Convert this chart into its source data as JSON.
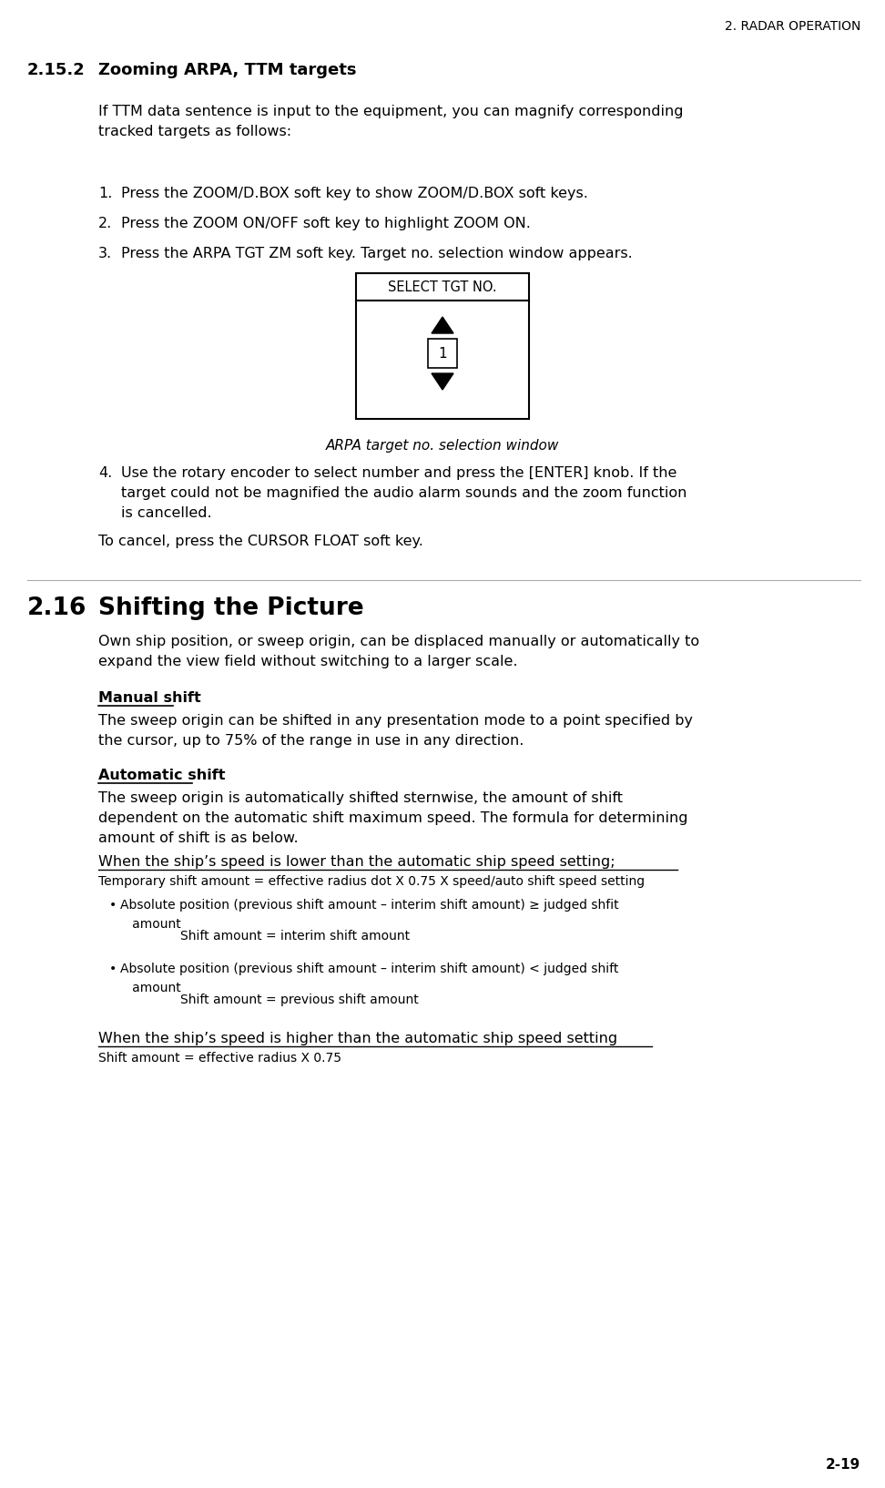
{
  "page_header": "2. RADAR OPERATION",
  "section_num": "2.15.2",
  "section_title": "Zooming ARPA, TTM targets",
  "intro_text": "If TTM data sentence is input to the equipment, you can magnify corresponding\ntracked targets as follows:",
  "steps": [
    "Press the ZOOM/D.BOX soft key to show ZOOM/D.BOX soft keys.",
    "Press the ZOOM ON/OFF soft key to highlight ZOOM ON.",
    "Press the ARPA TGT ZM soft key. Target no. selection window appears."
  ],
  "box_title": "SELECT TGT NO.",
  "box_number": "1",
  "box_caption": "ARPA target no. selection window",
  "step4": "Use the rotary encoder to select number and press the [ENTER] knob. If the\ntarget could not be magnified the audio alarm sounds and the zoom function\nis cancelled.",
  "cancel_text": "To cancel, press the CURSOR FLOAT soft key.",
  "section2_num": "2.16",
  "section2_title": "Shifting the Picture",
  "section2_intro": "Own ship position, or sweep origin, can be displaced manually or automatically to\nexpand the view field without switching to a larger scale.",
  "manual_shift_title": "Manual shift",
  "manual_shift_text": "The sweep origin can be shifted in any presentation mode to a point specified by\nthe cursor, up to 75% of the range in use in any direction.",
  "auto_shift_title": "Automatic shift",
  "auto_shift_text": "The sweep origin is automatically shifted sternwise, the amount of shift\ndependent on the automatic shift maximum speed. The formula for determining\namount of shift is as below.",
  "when_lower_title": "When the ship’s speed is lower than the automatic ship speed setting;",
  "when_lower_text": "Temporary shift amount = effective radius dot X 0.75 X speed/auto shift speed setting",
  "bullet1_main": "Absolute position (previous shift amount – interim shift amount) ≥ judged shfit\n   amount",
  "bullet1_indent": "Shift amount = interim shift amount",
  "bullet2_main": "Absolute position (previous shift amount – interim shift amount) < judged shift\n   amount",
  "bullet2_indent": "Shift amount = previous shift amount",
  "when_higher_title": "When the ship’s speed is higher than the automatic ship speed setting",
  "when_higher_text": "Shift amount = effective radius X 0.75",
  "page_number": "2-19",
  "bg_color": "#ffffff",
  "text_color": "#000000"
}
